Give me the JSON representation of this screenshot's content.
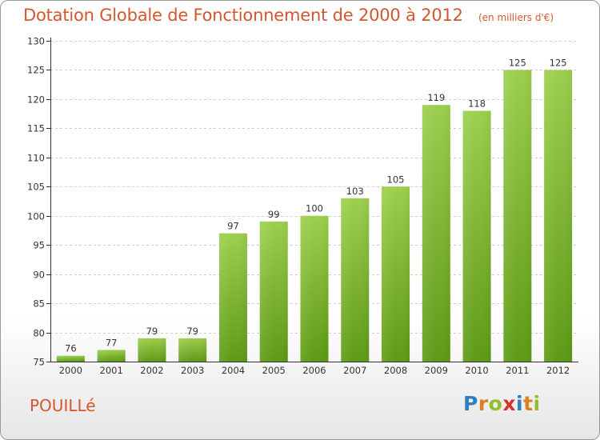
{
  "title": "Dotation Globale de Fonctionnement de 2000 à 2012",
  "unit": "(en milliers d'€)",
  "commune": "POUILLé",
  "logo": {
    "letters": [
      "P",
      "r",
      "o",
      "x",
      "i",
      "t",
      "i"
    ],
    "colors": [
      "#2f7fc1",
      "#e07f1f",
      "#8fbf2f",
      "#d8332a",
      "#2f7fc1",
      "#e07f1f",
      "#8fbf2f"
    ]
  },
  "colors": {
    "title": "#d4562e",
    "bar_top": "#9ccf4d",
    "bar_bottom": "#5d9a14",
    "axis": "#333333",
    "grid": "#cccccc"
  },
  "chart_data": {
    "type": "bar",
    "categories": [
      "2000",
      "2001",
      "2002",
      "2003",
      "2004",
      "2005",
      "2006",
      "2007",
      "2008",
      "2009",
      "2010",
      "2011",
      "2012"
    ],
    "values": [
      76,
      77,
      79,
      79,
      97,
      99,
      100,
      103,
      105,
      119,
      118,
      125,
      125
    ],
    "yticks": [
      75,
      80,
      85,
      90,
      95,
      100,
      105,
      110,
      115,
      120,
      125,
      130
    ],
    "ylim": [
      75,
      130
    ],
    "grid": true
  }
}
